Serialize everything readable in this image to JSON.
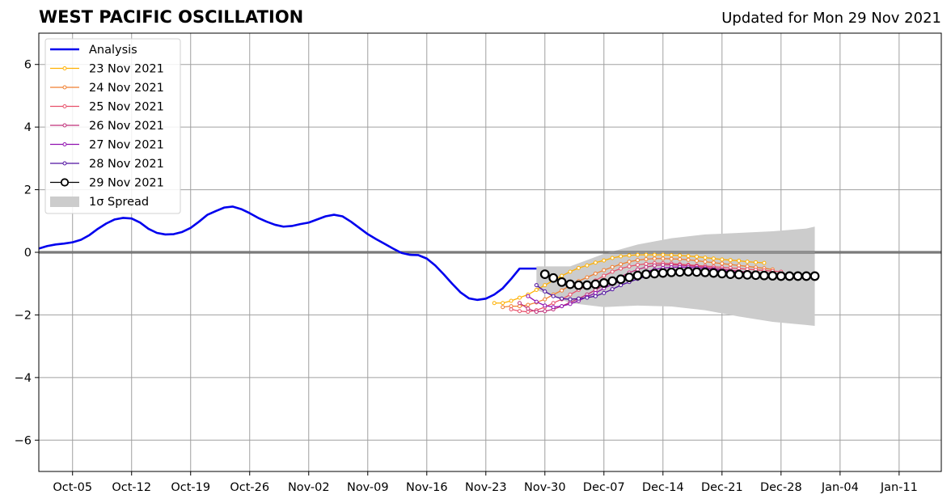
{
  "title": "WEST PACIFIC OSCILLATION",
  "subtitle": "Updated for Mon 29 Nov 2021",
  "chart_data": {
    "type": "line",
    "title": "WEST PACIFIC OSCILLATION",
    "subtitle": "Updated for Mon 29 Nov 2021",
    "x_axis": {
      "type": "date",
      "range": [
        "2021-10-01",
        "2022-01-16"
      ],
      "ticks": [
        "2021-10-05",
        "2021-10-12",
        "2021-10-19",
        "2021-10-26",
        "2021-11-02",
        "2021-11-09",
        "2021-11-16",
        "2021-11-23",
        "2021-11-30",
        "2021-12-07",
        "2021-12-14",
        "2021-12-21",
        "2021-12-28",
        "2022-01-04",
        "2022-01-11"
      ],
      "tick_labels": [
        "Oct-05",
        "Oct-12",
        "Oct-19",
        "Oct-26",
        "Nov-02",
        "Nov-09",
        "Nov-16",
        "Nov-23",
        "Nov-30",
        "Dec-07",
        "Dec-14",
        "Dec-21",
        "Dec-28",
        "Jan-04",
        "Jan-11"
      ]
    },
    "y_axis": {
      "range": [
        -7,
        7
      ],
      "ticks": [
        -6,
        -4,
        -2,
        0,
        2,
        4,
        6
      ],
      "tick_labels": [
        "−6",
        "−4",
        "−2",
        "0",
        "2",
        "4",
        "6"
      ]
    },
    "grid": true,
    "legend": {
      "position": "top-left"
    },
    "zero_line": 0,
    "analysis": {
      "name": "Analysis",
      "color": "#0000ee",
      "x": [
        "2021-10-01",
        "2021-10-02",
        "2021-10-03",
        "2021-10-04",
        "2021-10-05",
        "2021-10-06",
        "2021-10-07",
        "2021-10-08",
        "2021-10-09",
        "2021-10-10",
        "2021-10-11",
        "2021-10-12",
        "2021-10-13",
        "2021-10-14",
        "2021-10-15",
        "2021-10-16",
        "2021-10-17",
        "2021-10-18",
        "2021-10-19",
        "2021-10-20",
        "2021-10-21",
        "2021-10-22",
        "2021-10-23",
        "2021-10-24",
        "2021-10-25",
        "2021-10-26",
        "2021-10-27",
        "2021-10-28",
        "2021-10-29",
        "2021-10-30",
        "2021-10-31",
        "2021-11-01",
        "2021-11-02",
        "2021-11-03",
        "2021-11-04",
        "2021-11-05",
        "2021-11-06",
        "2021-11-07",
        "2021-11-08",
        "2021-11-09",
        "2021-11-10",
        "2021-11-11",
        "2021-11-12",
        "2021-11-13",
        "2021-11-14",
        "2021-11-15",
        "2021-11-16",
        "2021-11-17",
        "2021-11-18",
        "2021-11-19",
        "2021-11-20",
        "2021-11-21",
        "2021-11-22",
        "2021-11-23",
        "2021-11-24",
        "2021-11-25",
        "2021-11-26",
        "2021-11-27",
        "2021-11-28",
        "2021-11-29"
      ],
      "y": [
        0.12,
        0.2,
        0.25,
        0.28,
        0.32,
        0.4,
        0.55,
        0.75,
        0.92,
        1.05,
        1.1,
        1.08,
        0.95,
        0.75,
        0.62,
        0.57,
        0.58,
        0.65,
        0.78,
        0.98,
        1.2,
        1.32,
        1.43,
        1.46,
        1.38,
        1.25,
        1.1,
        0.98,
        0.88,
        0.82,
        0.84,
        0.9,
        0.95,
        1.05,
        1.15,
        1.2,
        1.15,
        0.98,
        0.78,
        0.58,
        0.42,
        0.27,
        0.12,
        -0.02,
        -0.08,
        -0.09,
        -0.2,
        -0.42,
        -0.7,
        -1.0,
        -1.28,
        -1.47,
        -1.52,
        -1.48,
        -1.35,
        -1.15,
        -0.85,
        -0.52,
        -0.52,
        -0.52
      ]
    },
    "spread": {
      "name": "1σ Spread",
      "color": "#cccccc",
      "x": [
        "2021-11-29",
        "2021-12-03",
        "2021-12-07",
        "2021-12-11",
        "2021-12-15",
        "2021-12-19",
        "2021-12-23",
        "2021-12-27",
        "2021-12-31",
        "2022-01-01"
      ],
      "upper": [
        -0.45,
        -0.45,
        -0.05,
        0.25,
        0.45,
        0.57,
        0.62,
        0.67,
        0.76,
        0.82
      ],
      "lower": [
        -1.2,
        -1.62,
        -1.75,
        -1.7,
        -1.73,
        -1.85,
        -2.05,
        -2.22,
        -2.32,
        -2.35
      ]
    },
    "series": [
      {
        "name": "23 Nov 2021",
        "color": "#ffb000",
        "x": [
          "2021-11-24",
          "2021-11-25",
          "2021-11-26",
          "2021-11-27",
          "2021-11-28",
          "2021-11-29",
          "2021-11-30",
          "2021-12-01",
          "2021-12-02",
          "2021-12-03",
          "2021-12-04",
          "2021-12-05",
          "2021-12-06",
          "2021-12-07",
          "2021-12-08",
          "2021-12-09",
          "2021-12-10",
          "2021-12-11",
          "2021-12-12",
          "2021-12-13",
          "2021-12-14",
          "2021-12-15",
          "2021-12-16",
          "2021-12-17",
          "2021-12-18",
          "2021-12-19",
          "2021-12-20",
          "2021-12-21",
          "2021-12-22",
          "2021-12-23",
          "2021-12-24",
          "2021-12-25",
          "2021-12-26"
        ],
        "y": [
          -1.62,
          -1.62,
          -1.55,
          -1.45,
          -1.35,
          -1.2,
          -1.05,
          -0.9,
          -0.75,
          -0.62,
          -0.5,
          -0.42,
          -0.33,
          -0.26,
          -0.18,
          -0.13,
          -0.1,
          -0.08,
          -0.08,
          -0.08,
          -0.08,
          -0.09,
          -0.1,
          -0.12,
          -0.14,
          -0.17,
          -0.2,
          -0.23,
          -0.25,
          -0.27,
          -0.3,
          -0.32,
          -0.34
        ]
      },
      {
        "name": "24 Nov 2021",
        "color": "#f07f30",
        "x": [
          "2021-11-25",
          "2021-11-26",
          "2021-11-27",
          "2021-11-28",
          "2021-11-29",
          "2021-11-30",
          "2021-12-01",
          "2021-12-02",
          "2021-12-03",
          "2021-12-04",
          "2021-12-05",
          "2021-12-06",
          "2021-12-07",
          "2021-12-08",
          "2021-12-09",
          "2021-12-10",
          "2021-12-11",
          "2021-12-12",
          "2021-12-13",
          "2021-12-14",
          "2021-12-15",
          "2021-12-16",
          "2021-12-17",
          "2021-12-18",
          "2021-12-19",
          "2021-12-20",
          "2021-12-21",
          "2021-12-22",
          "2021-12-23",
          "2021-12-24",
          "2021-12-25",
          "2021-12-26",
          "2021-12-27"
        ],
        "y": [
          -1.75,
          -1.72,
          -1.72,
          -1.68,
          -1.6,
          -1.5,
          -1.35,
          -1.22,
          -1.05,
          -0.92,
          -0.8,
          -0.68,
          -0.57,
          -0.47,
          -0.38,
          -0.3,
          -0.25,
          -0.22,
          -0.2,
          -0.2,
          -0.21,
          -0.22,
          -0.24,
          -0.27,
          -0.3,
          -0.33,
          -0.36,
          -0.39,
          -0.42,
          -0.45,
          -0.48,
          -0.51,
          -0.55
        ]
      },
      {
        "name": "25 Nov 2021",
        "color": "#e8506a",
        "x": [
          "2021-11-26",
          "2021-11-27",
          "2021-11-28",
          "2021-11-29",
          "2021-11-30",
          "2021-12-01",
          "2021-12-02",
          "2021-12-03",
          "2021-12-04",
          "2021-12-05",
          "2021-12-06",
          "2021-12-07",
          "2021-12-08",
          "2021-12-09",
          "2021-12-10",
          "2021-12-11",
          "2021-12-12",
          "2021-12-13",
          "2021-12-14",
          "2021-12-15",
          "2021-12-16",
          "2021-12-17",
          "2021-12-18",
          "2021-12-19",
          "2021-12-20",
          "2021-12-21",
          "2021-12-22",
          "2021-12-23",
          "2021-12-24",
          "2021-12-25",
          "2021-12-26",
          "2021-12-27",
          "2021-12-28"
        ],
        "y": [
          -1.82,
          -1.88,
          -1.9,
          -1.85,
          -1.75,
          -1.62,
          -1.5,
          -1.35,
          -1.2,
          -1.05,
          -0.9,
          -0.75,
          -0.62,
          -0.52,
          -0.45,
          -0.4,
          -0.37,
          -0.35,
          -0.35,
          -0.36,
          -0.38,
          -0.4,
          -0.42,
          -0.44,
          -0.46,
          -0.48,
          -0.5,
          -0.52,
          -0.54,
          -0.56,
          -0.58,
          -0.6,
          -0.62
        ]
      },
      {
        "name": "26 Nov 2021",
        "color": "#c0307a",
        "x": [
          "2021-11-27",
          "2021-11-28",
          "2021-11-29",
          "2021-11-30",
          "2021-12-01",
          "2021-12-02",
          "2021-12-03",
          "2021-12-04",
          "2021-12-05",
          "2021-12-06",
          "2021-12-07",
          "2021-12-08",
          "2021-12-09",
          "2021-12-10",
          "2021-12-11",
          "2021-12-12",
          "2021-12-13",
          "2021-12-14",
          "2021-12-15",
          "2021-12-16",
          "2021-12-17",
          "2021-12-18",
          "2021-12-19",
          "2021-12-20",
          "2021-12-21",
          "2021-12-22",
          "2021-12-23",
          "2021-12-24",
          "2021-12-25",
          "2021-12-26",
          "2021-12-27",
          "2021-12-28",
          "2021-12-29"
        ],
        "y": [
          -1.62,
          -1.8,
          -1.9,
          -1.88,
          -1.82,
          -1.72,
          -1.6,
          -1.48,
          -1.35,
          -1.2,
          -1.05,
          -0.9,
          -0.78,
          -0.65,
          -0.55,
          -0.47,
          -0.42,
          -0.4,
          -0.4,
          -0.41,
          -0.43,
          -0.45,
          -0.48,
          -0.51,
          -0.54,
          -0.57,
          -0.6,
          -0.63,
          -0.66,
          -0.68,
          -0.7,
          -0.72,
          -0.74
        ]
      },
      {
        "name": "27 Nov 2021",
        "color": "#9010b0",
        "x": [
          "2021-11-28",
          "2021-11-29",
          "2021-11-30",
          "2021-12-01",
          "2021-12-02",
          "2021-12-03",
          "2021-12-04",
          "2021-12-05",
          "2021-12-06",
          "2021-12-07",
          "2021-12-08",
          "2021-12-09",
          "2021-12-10",
          "2021-12-11",
          "2021-12-12",
          "2021-12-13",
          "2021-12-14",
          "2021-12-15",
          "2021-12-16",
          "2021-12-17",
          "2021-12-18",
          "2021-12-19",
          "2021-12-20",
          "2021-12-21",
          "2021-12-22",
          "2021-12-23",
          "2021-12-24",
          "2021-12-25",
          "2021-12-26",
          "2021-12-27",
          "2021-12-28",
          "2021-12-29",
          "2021-12-30"
        ],
        "y": [
          -1.4,
          -1.58,
          -1.7,
          -1.75,
          -1.72,
          -1.65,
          -1.55,
          -1.42,
          -1.3,
          -1.15,
          -1.02,
          -0.92,
          -0.82,
          -0.72,
          -0.62,
          -0.55,
          -0.5,
          -0.48,
          -0.47,
          -0.48,
          -0.5,
          -0.52,
          -0.55,
          -0.58,
          -0.61,
          -0.64,
          -0.67,
          -0.7,
          -0.72,
          -0.74,
          -0.76,
          -0.78,
          -0.8
        ]
      },
      {
        "name": "28 Nov 2021",
        "color": "#5010a0",
        "x": [
          "2021-11-29",
          "2021-11-30",
          "2021-12-01",
          "2021-12-02",
          "2021-12-03",
          "2021-12-04",
          "2021-12-05",
          "2021-12-06",
          "2021-12-07",
          "2021-12-08",
          "2021-12-09",
          "2021-12-10",
          "2021-12-11",
          "2021-12-12",
          "2021-12-13",
          "2021-12-14",
          "2021-12-15",
          "2021-12-16",
          "2021-12-17",
          "2021-12-18",
          "2021-12-19",
          "2021-12-20",
          "2021-12-21",
          "2021-12-22",
          "2021-12-23",
          "2021-12-24",
          "2021-12-25",
          "2021-12-26",
          "2021-12-27",
          "2021-12-28",
          "2021-12-29",
          "2021-12-30",
          "2021-12-31"
        ],
        "y": [
          -1.05,
          -1.25,
          -1.4,
          -1.48,
          -1.5,
          -1.48,
          -1.45,
          -1.4,
          -1.3,
          -1.18,
          -1.05,
          -0.95,
          -0.85,
          -0.77,
          -0.7,
          -0.65,
          -0.62,
          -0.6,
          -0.6,
          -0.6,
          -0.62,
          -0.64,
          -0.66,
          -0.68,
          -0.7,
          -0.72,
          -0.74,
          -0.76,
          -0.78,
          -0.79,
          -0.8,
          -0.81,
          -0.82
        ]
      },
      {
        "name": "29 Nov 2021",
        "color": "#000000",
        "x": [
          "2021-11-30",
          "2021-12-01",
          "2021-12-02",
          "2021-12-03",
          "2021-12-04",
          "2021-12-05",
          "2021-12-06",
          "2021-12-07",
          "2021-12-08",
          "2021-12-09",
          "2021-12-10",
          "2021-12-11",
          "2021-12-12",
          "2021-12-13",
          "2021-12-14",
          "2021-12-15",
          "2021-12-16",
          "2021-12-17",
          "2021-12-18",
          "2021-12-19",
          "2021-12-20",
          "2021-12-21",
          "2021-12-22",
          "2021-12-23",
          "2021-12-24",
          "2021-12-25",
          "2021-12-26",
          "2021-12-27",
          "2021-12-28",
          "2021-12-29",
          "2021-12-30",
          "2021-12-31",
          "2022-01-01"
        ],
        "y": [
          -0.7,
          -0.82,
          -0.95,
          -1.02,
          -1.05,
          -1.05,
          -1.02,
          -0.98,
          -0.92,
          -0.86,
          -0.8,
          -0.74,
          -0.7,
          -0.68,
          -0.66,
          -0.64,
          -0.63,
          -0.62,
          -0.63,
          -0.64,
          -0.66,
          -0.68,
          -0.7,
          -0.71,
          -0.72,
          -0.73,
          -0.74,
          -0.75,
          -0.76,
          -0.76,
          -0.76,
          -0.76,
          -0.76
        ]
      }
    ]
  }
}
